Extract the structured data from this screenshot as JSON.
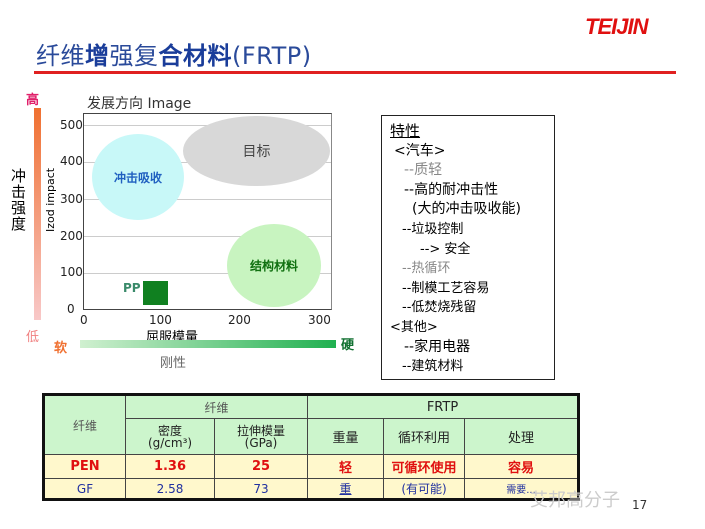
{
  "header": {
    "title_parts": [
      "纤维",
      "增",
      "强",
      "复",
      "合材料",
      "(FRTP)"
    ],
    "logo": "TEIJIN"
  },
  "chart": {
    "heading": "发展方向  Image",
    "y_scale_high": "高",
    "y_scale_low": "低",
    "y_scale_label": "冲击强度",
    "x_scale_soft": "软",
    "x_scale_hard": "硬",
    "x_scale_label": "刚性",
    "y_axis_label": "Izod impact",
    "x_axis_label": "屈服模量",
    "y_ticks": [
      "0",
      "100",
      "200",
      "300",
      "400",
      "500"
    ],
    "x_ticks": [
      "0",
      "100",
      "200",
      "300"
    ],
    "regions": {
      "target": "目标",
      "impact": "冲击吸收",
      "structural": "结构材料",
      "pp": "PP"
    },
    "colors": {
      "target": "#d8d8d8",
      "impact": "#c8f8f8",
      "structural": "#c8f4c0",
      "pp": "#108020"
    }
  },
  "features": {
    "title": "特性",
    "lines": [
      "<汽车>",
      "--质轻",
      "--高的耐冲击性",
      "(大的冲击吸收能)",
      "--垃圾控制",
      "--> 安全",
      "--热循环",
      "--制模工艺容易",
      "--低焚烧残留",
      "<其他>",
      "--家用电器",
      "--建筑材料"
    ]
  },
  "table": {
    "fiber": "纤维",
    "fiber_group": "纤维",
    "frtp_group": "FRTP",
    "density": "密度",
    "density_unit": "(g/cm³)",
    "modulus": "拉伸模量",
    "modulus_unit": "(GPa)",
    "weight": "重量",
    "recycle": "循环利用",
    "handling": "处理",
    "rows": [
      [
        "PEN",
        "1.36",
        "25",
        "轻",
        "可循环使用",
        "容易"
      ],
      [
        "GF",
        "2.58",
        "73",
        "重",
        "(有可能)",
        "需要..."
      ]
    ]
  },
  "watermark": "艾邦高分子",
  "page_number": "17"
}
